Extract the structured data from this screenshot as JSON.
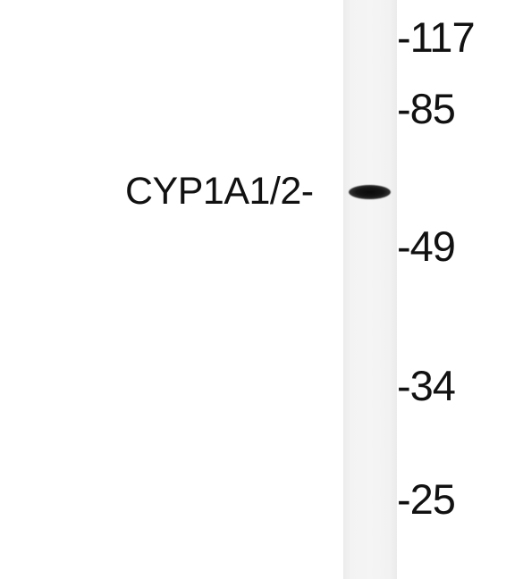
{
  "blot": {
    "protein_label": "CYP1A1/2-",
    "markers": [
      {
        "label": "-117"
      },
      {
        "label": "-85"
      },
      {
        "label": "-49"
      },
      {
        "label": "-34"
      },
      {
        "label": "-25"
      }
    ]
  }
}
